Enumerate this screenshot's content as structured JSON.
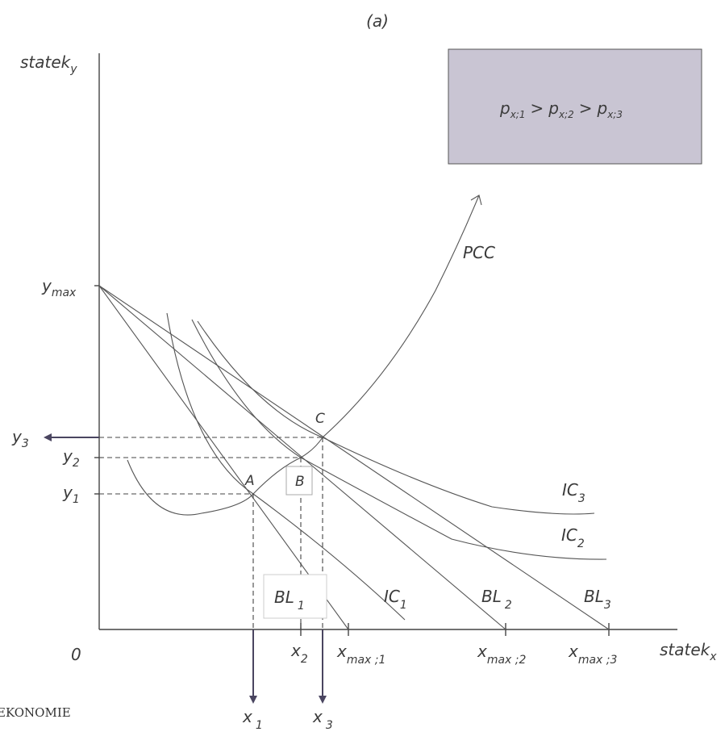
{
  "title": "(a)",
  "info_box": {
    "p": "p",
    "sub1": "x;1",
    "sub2": "x;2",
    "sub3": "x;3",
    "gt": ">"
  },
  "axes": {
    "y_label": "statek",
    "y_label_sub": "y",
    "x_label": "statek",
    "x_label_sub": "x",
    "origin": "0",
    "y_max": "y",
    "y_max_sub": "max"
  },
  "points": {
    "A": "A",
    "B": "B",
    "C": "C"
  },
  "pcc": "PCC",
  "y_ticks": [
    {
      "main": "y",
      "sub": "3"
    },
    {
      "main": "y",
      "sub": "2"
    },
    {
      "main": "y",
      "sub": "1"
    }
  ],
  "x_ticks": [
    {
      "main": "x",
      "sub": "2"
    },
    {
      "main": "x",
      "sub": "max ;1"
    },
    {
      "main": "x",
      "sub": "max ;2"
    },
    {
      "main": "x",
      "sub": "max ;3"
    }
  ],
  "x_arrows": [
    {
      "main": "x",
      "sub": "1"
    },
    {
      "main": "x",
      "sub": "3"
    }
  ],
  "indifference_curves": [
    {
      "main": "IC",
      "sub": "1"
    },
    {
      "main": "IC",
      "sub": "2"
    },
    {
      "main": "IC",
      "sub": "3"
    }
  ],
  "budget_lines": [
    {
      "main": "BL",
      "sub": "1"
    },
    {
      "main": "BL",
      "sub": "2"
    },
    {
      "main": "BL",
      "sub": "3"
    }
  ],
  "footer_text": "EKONOMIE"
}
